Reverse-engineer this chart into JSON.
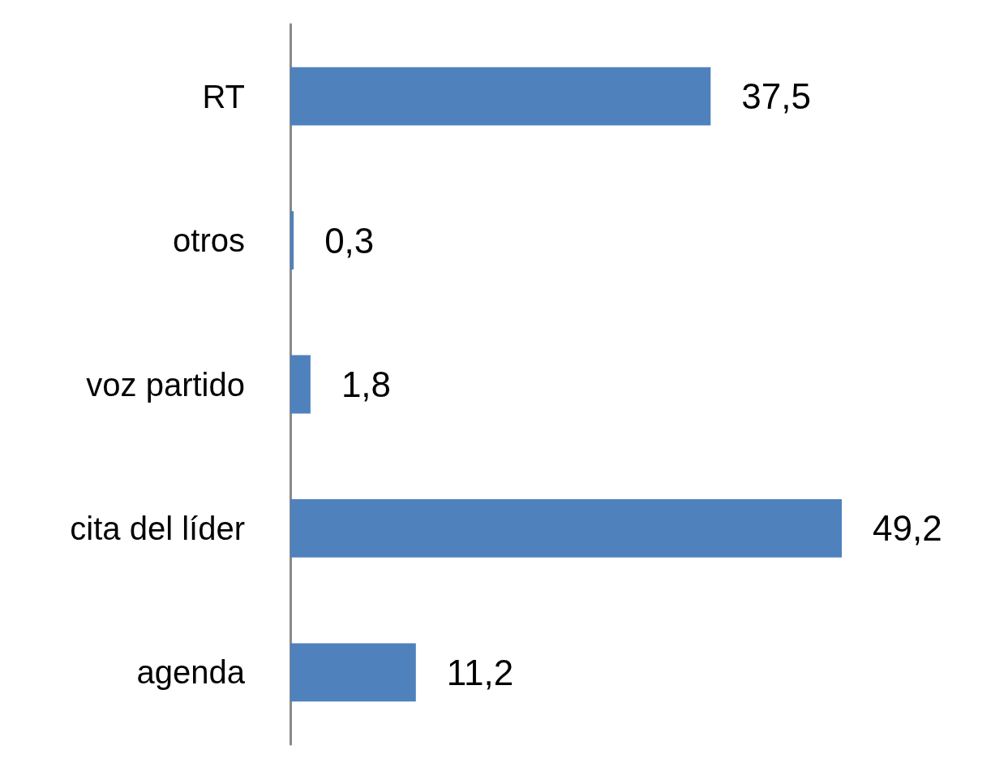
{
  "chart_data": {
    "type": "bar",
    "orientation": "horizontal",
    "categories": [
      "RT",
      "otros",
      "voz partido",
      "cita del líder",
      "agenda"
    ],
    "values": [
      37.5,
      0.3,
      1.8,
      49.2,
      11.2
    ],
    "value_labels": [
      "37,5",
      "0,3",
      "1,8",
      "49,2",
      "11,2"
    ],
    "color": "#4f81bd"
  }
}
